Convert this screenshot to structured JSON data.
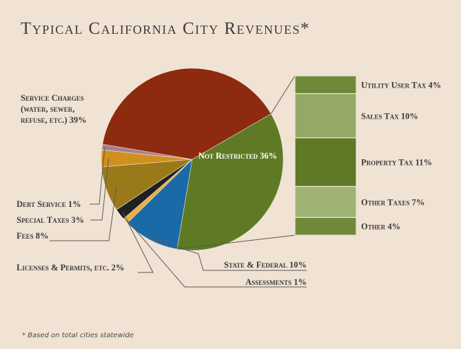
{
  "chart_data": {
    "type": "pie",
    "title": "Typical California City Revenues*",
    "slices": [
      {
        "label": "Not Restricted 36%",
        "value": 36,
        "color": "#5e7a24"
      },
      {
        "label": "State & Federal 10%",
        "value": 10,
        "color": "#1b6aa8"
      },
      {
        "label": "Assessments 1%",
        "value": 1,
        "color": "#e8b042"
      },
      {
        "label": "Licenses & Permits, etc. 2%",
        "value": 2,
        "color": "#202020"
      },
      {
        "label": "Fees 8%",
        "value": 8,
        "color": "#9a7a18"
      },
      {
        "label": "Special Taxes 3%",
        "value": 3,
        "color": "#d1901d"
      },
      {
        "label": "Debt Service 1%",
        "value": 1,
        "color": "#a48190"
      },
      {
        "label": "Service Charges (water, sewer, refuse, etc.) 39%",
        "value": 39,
        "color": "#8e2a10"
      }
    ],
    "breakdown": {
      "of": "Not Restricted",
      "items": [
        {
          "label": "Utility User Tax 4%",
          "value": 4,
          "color": "#6e8a38"
        },
        {
          "label": "Sales Tax 10%",
          "value": 10,
          "color": "#94a966"
        },
        {
          "label": "Property Tax 11%",
          "value": 11,
          "color": "#5e7a24"
        },
        {
          "label": "Other Taxes 7%",
          "value": 7,
          "color": "#9fb374"
        },
        {
          "label": "Other 4%",
          "value": 4,
          "color": "#6e8a38"
        }
      ]
    },
    "footnote": "* Based on total cities statewide"
  }
}
